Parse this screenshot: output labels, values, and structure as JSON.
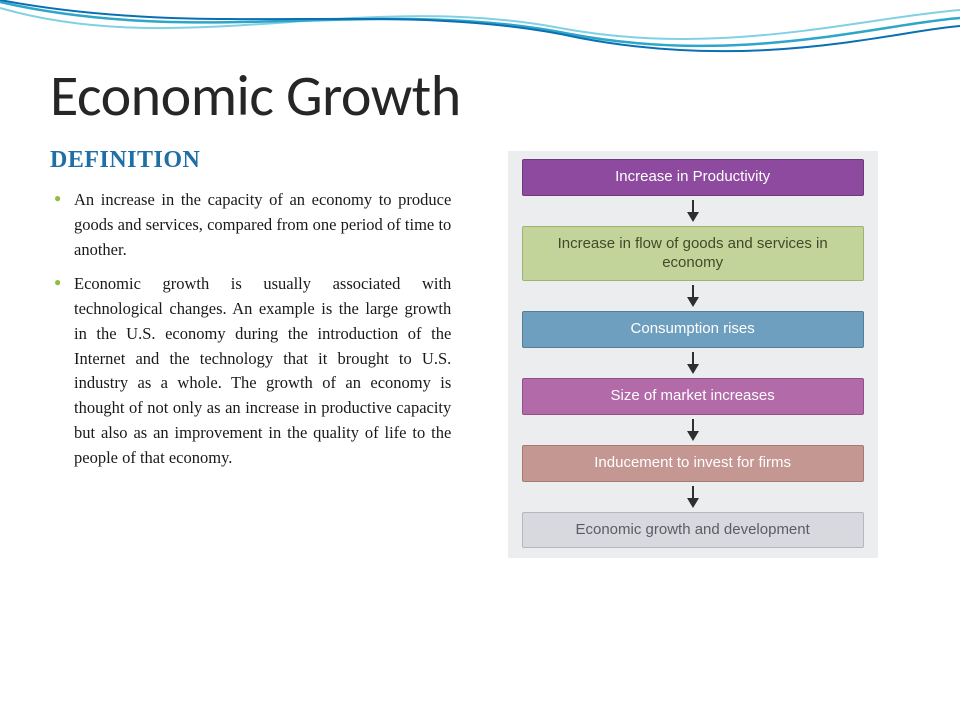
{
  "title": "Economic Growth",
  "subtitle": "DEFINITION",
  "bullets": [
    "An increase in the capacity of an economy to produce goods and services, compared from one period of time to another.",
    "Economic growth is usually associated with technological changes. An example is the large growth in the U.S. economy during the introduction of the Internet and the technology that it brought to U.S. industry as a whole. The growth of an economy is thought of not only as an increase in productive capacity but also as an improvement in the quality of life to the people of that economy."
  ],
  "flowchart": {
    "type": "flowchart",
    "background_color": "#ecedef",
    "arrow_color": "#2f2f2f",
    "node_font_size": 15,
    "node_text_color_light": "#ffffff",
    "nodes": [
      {
        "label": "Increase in Productivity",
        "fill": "#8d4a9e",
        "border": "#6f3a7d",
        "text": "#ffffff",
        "height": 36
      },
      {
        "label": "Increase in flow of goods and services in economy",
        "fill": "#c3d49a",
        "border": "#9fb272",
        "text": "#3f4a2a",
        "height": 52
      },
      {
        "label": "Consumption rises",
        "fill": "#6f9fbf",
        "border": "#557f99",
        "text": "#ffffff",
        "height": 34
      },
      {
        "label": "Size of market increases",
        "fill": "#b26aa8",
        "border": "#8f5287",
        "text": "#ffffff",
        "height": 34
      },
      {
        "label": "Inducement to invest for firms",
        "fill": "#c49792",
        "border": "#a87a74",
        "text": "#ffffff",
        "height": 36
      },
      {
        "label": "Economic growth and development",
        "fill": "#d7d9de",
        "border": "#b4b7bf",
        "text": "#5a5d63",
        "height": 36
      }
    ]
  },
  "theme": {
    "title_color": "#262626",
    "subtitle_color": "#1f6fa6",
    "bullet_marker_color": "#8fbf3f",
    "wave_colors": [
      "#0b6fb4",
      "#2ea6c9",
      "#7fd1e3"
    ]
  }
}
